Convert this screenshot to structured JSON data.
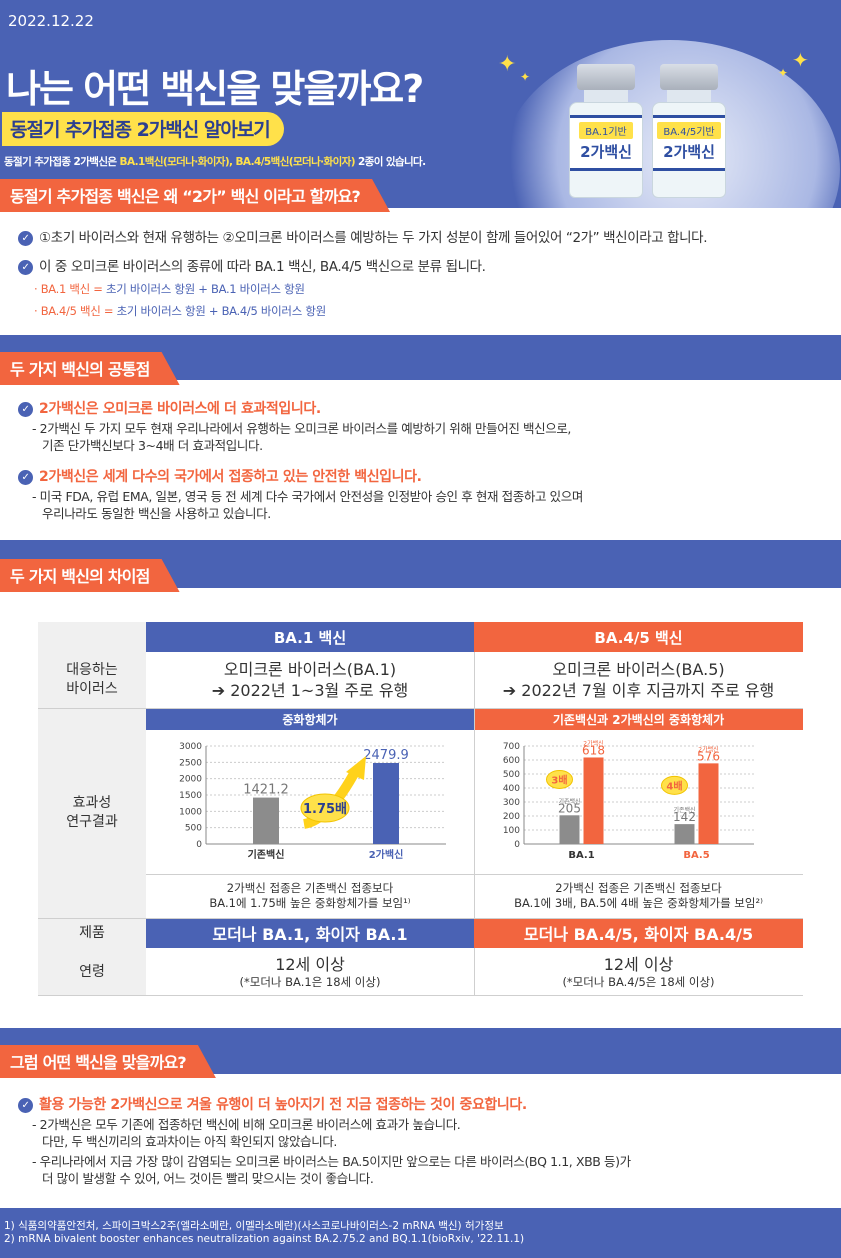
{
  "date": "2022.12.22",
  "main_title": "나는 어떤 백신을 맞을까요?",
  "subtitle": "동절기 추가접종 2가백신 알아보기",
  "intro": {
    "pre": "동절기 추가접종 2가백신은 ",
    "hl1": "BA.1백신(모더나·화이자), BA.4/5백신(모더나·화이자)",
    "post": " 2종이 있습니다."
  },
  "bottles": [
    {
      "tag": "BA.1기반",
      "name": "2가백신"
    },
    {
      "tag": "BA.4/5기반",
      "name": "2가백신"
    }
  ],
  "section1": {
    "tab": "동절기 추가접종 백신은 왜 “2가” 백신 이라고 할까요?",
    "line1": "①초기 바이러스와 현재 유행하는 ②오미크론 바이러스를 예방하는 두 가지 성분이 함께 들어있어 “2가” 백신이라고 합니다.",
    "line2": "이 중 오미크론 바이러스의 종류에 따라 BA.1 백신, BA.4/5 백신으로 분류 됩니다.",
    "sub1_a": "· BA.1 백신 = ",
    "sub1_b": "초기 바이러스 항원 + BA.1 바이러스 항원",
    "sub2_a": "· BA.4/5 백신 = ",
    "sub2_b": "초기 바이러스 항원 + BA.4/5 바이러스 항원"
  },
  "section2": {
    "tab": "두 가지 백신의 공통점",
    "h1": "2가백신은 오미크론 바이러스에 더 효과적입니다.",
    "p1a": "- 2가백신 두 가지 모두 현재 우리나라에서 유행하는 오미크론 바이러스를 예방하기 위해 만들어진 백신으로,",
    "p1b": "기존 단가백신보다 3~4배 더 효과적입니다.",
    "h2": "2가백신은 세계 다수의 국가에서 접종하고 있는 안전한 백신입니다.",
    "p2a": "- 미국 FDA, 유럽 EMA, 일본, 영국 등 전 세계 다수 국가에서 안전성을 인정받아 승인 후 현재 접종하고 있으며",
    "p2b": "우리나라도 동일한 백신을 사용하고 있습니다."
  },
  "section3": {
    "tab": "두 가지 백신의 차이점",
    "col1": "BA.1 백신",
    "col2": "BA.4/5 백신",
    "row_virus": "대응하는\n바이러스",
    "virus1a": "오미크론 바이러스(BA.1)",
    "virus1b": "➔ 2022년 1~3월 주로 유행",
    "virus2a": "오미크론 바이러스(BA.5)",
    "virus2b": "➔ 2022년 7월 이후 지금까지 주로 유행",
    "row_effect": "효과성\n연구결과",
    "chart1_title": "중화항체가",
    "chart2_title": "기존백신과 2가백신의 중화항체가",
    "note1a": "2가백신 접종은 기존백신 접종보다",
    "note1b": "BA.1에 1.75배 높은 중화항체가를 보임¹⁾",
    "note2a": "2가백신 접종은 기존백신 접종보다",
    "note2b": "BA.1에 3배,  BA.5에 4배 높은 중화항체가를 보임²⁾",
    "row_product": "제품",
    "product1": "모더나 BA.1, 화이자 BA.1",
    "product2": "모더나 BA.4/5, 화이자 BA.4/5",
    "row_age": "연령",
    "age1a": "12세 이상",
    "age1b": "(*모더나 BA.1은 18세 이상)",
    "age2a": "12세 이상",
    "age2b": "(*모더나 BA.4/5은 18세 이상)"
  },
  "chart_data": [
    {
      "type": "bar",
      "title": "중화항체가",
      "categories": [
        "기존백신",
        "2가백신"
      ],
      "values": [
        1421.2,
        2479.9
      ],
      "yticks": [
        0,
        500,
        1000,
        1500,
        2000,
        2500,
        3000
      ],
      "ylim": [
        0,
        3000
      ],
      "annotation": "1.75배",
      "colors": [
        "#8c8c8c",
        "#4a62b4"
      ],
      "grid": true
    },
    {
      "type": "bar",
      "title": "기존백신과 2가백신의 중화항체가",
      "categories": [
        "BA.1",
        "BA.5"
      ],
      "series": [
        {
          "name": "기존백신",
          "values": [
            205,
            142
          ]
        },
        {
          "name": "2가백신",
          "values": [
            618,
            576
          ]
        }
      ],
      "annotations": [
        "3배",
        "4배"
      ],
      "yticks": [
        0,
        100,
        200,
        300,
        400,
        500,
        600,
        700
      ],
      "ylim": [
        0,
        700
      ],
      "colors": [
        "#8c8c8c",
        "#f2653f"
      ],
      "grid": true
    }
  ],
  "section4": {
    "tab": "그럼 어떤 백신을 맞을까요?",
    "h1": "활용 가능한 2가백신으로 겨울 유행이 더 높아지기 전 지금 접종하는 것이 중요합니다.",
    "p1a": "- 2가백신은 모두 기존에 접종하던 백신에 비해 오미크론 바이러스에 효과가 높습니다.",
    "p1b": "다만, 두 백신끼리의 효과차이는 아직 확인되지 않았습니다.",
    "p2a": "- 우리나라에서 지금 가장 많이 감염되는 오미크론 바이러스는 BA.5이지만 앞으로는 다른 바이러스(BQ 1.1, XBB 등)가",
    "p2b": "더 많이 발생할 수 있어, 어느 것이든 빨리 맞으시는 것이 좋습니다."
  },
  "footnotes": [
    "1) 식품의약품안전처, 스파이크박스2주(엘라소메란, 이멜라소메란)(사스코로나바이러스-2 mRNA 백신) 허가정보",
    "2) mRNA bivalent booster enhances neutralization against BA.2.75.2 and BQ.1.1(bioRxiv, '22.11.1)"
  ]
}
